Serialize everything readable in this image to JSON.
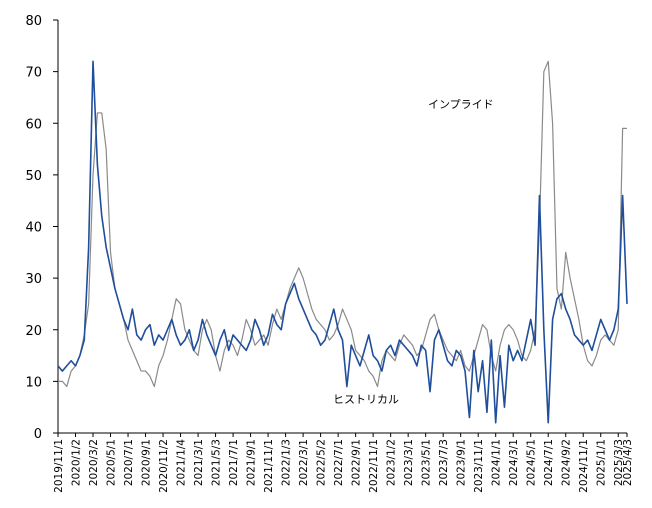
{
  "chart_data": {
    "type": "line",
    "annotations": [
      "インプライド",
      "ヒストリカル"
    ],
    "categories": [
      "2019/11/1",
      null,
      null,
      null,
      "2020/1/2",
      null,
      null,
      null,
      "2020/3/2",
      null,
      null,
      null,
      "2020/5/1",
      null,
      null,
      null,
      "2020/7/1",
      null,
      null,
      null,
      "2020/9/1",
      null,
      null,
      null,
      "2020/11/2",
      null,
      null,
      null,
      "2021/1/4",
      null,
      null,
      null,
      "2021/3/1",
      null,
      null,
      null,
      "2021/5/3",
      null,
      null,
      null,
      "2021/7/1",
      null,
      null,
      null,
      "2021/9/1",
      null,
      null,
      null,
      "2021/11/1",
      null,
      null,
      null,
      "2022/1/3",
      null,
      null,
      null,
      "2022/3/1",
      null,
      null,
      null,
      "2022/5/2",
      null,
      null,
      null,
      "2022/7/1",
      null,
      null,
      null,
      "2022/9/1",
      null,
      null,
      null,
      "2022/11/1",
      null,
      null,
      null,
      "2023/1/2",
      null,
      null,
      null,
      "2023/3/1",
      null,
      null,
      null,
      "2023/5/1",
      null,
      null,
      null,
      "2023/7/3",
      null,
      null,
      null,
      "2023/9/1",
      null,
      null,
      null,
      "2023/11/1",
      null,
      null,
      null,
      "2024/1/1",
      null,
      null,
      null,
      "2024/3/1",
      null,
      null,
      null,
      "2024/5/1",
      null,
      null,
      null,
      "2024/7/1",
      null,
      null,
      null,
      "2024/9/2",
      null,
      null,
      null,
      "2024/11/1",
      null,
      null,
      null,
      "2025/1/1",
      null,
      null,
      null,
      "2025/3/3",
      null,
      "2025/4/3"
    ],
    "series": [
      {
        "name": "インプライド",
        "color": "#8a8a8a",
        "values": [
          10,
          10,
          9,
          12,
          13,
          15,
          19,
          25,
          50,
          62,
          62,
          55,
          35,
          28,
          25,
          22,
          18,
          16,
          14,
          12,
          12,
          11,
          9,
          13,
          15,
          18,
          22,
          26,
          25,
          20,
          18,
          16,
          15,
          20,
          22,
          20,
          15,
          12,
          16,
          18,
          17,
          15,
          18,
          22,
          20,
          17,
          18,
          19,
          17,
          21,
          24,
          22,
          25,
          28,
          30,
          32,
          30,
          27,
          24,
          22,
          21,
          20,
          18,
          19,
          21,
          24,
          22,
          20,
          16,
          15,
          14,
          12,
          11,
          9,
          14,
          16,
          15,
          14,
          17,
          19,
          18,
          17,
          15,
          16,
          19,
          22,
          23,
          20,
          18,
          16,
          15,
          14,
          16,
          13,
          12,
          15,
          18,
          21,
          20,
          15,
          12,
          17,
          20,
          21,
          20,
          18,
          15,
          14,
          16,
          20,
          40,
          70,
          72,
          60,
          28,
          24,
          35,
          30,
          26,
          22,
          17,
          14,
          13,
          15,
          18,
          19,
          18,
          17,
          20,
          59,
          59
        ]
      },
      {
        "name": "ヒストリカル",
        "color": "#1f4e9c",
        "values": [
          13,
          12,
          13,
          14,
          13,
          15,
          18,
          36,
          72,
          52,
          42,
          36,
          32,
          28,
          25,
          22,
          20,
          24,
          19,
          18,
          20,
          21,
          17,
          19,
          18,
          20,
          22,
          19,
          17,
          18,
          20,
          16,
          18,
          22,
          19,
          17,
          15,
          18,
          20,
          16,
          19,
          18,
          17,
          16,
          18,
          22,
          20,
          17,
          19,
          23,
          21,
          20,
          25,
          27,
          29,
          26,
          24,
          22,
          20,
          19,
          17,
          18,
          21,
          24,
          20,
          18,
          9,
          17,
          15,
          13,
          16,
          19,
          15,
          14,
          12,
          16,
          17,
          15,
          18,
          17,
          16,
          15,
          13,
          17,
          16,
          8,
          18,
          20,
          17,
          14,
          13,
          16,
          15,
          12,
          3,
          16,
          8,
          14,
          4,
          18,
          2,
          15,
          5,
          17,
          14,
          16,
          14,
          18,
          22,
          17,
          46,
          20,
          2,
          22,
          26,
          27,
          24,
          22,
          19,
          18,
          17,
          18,
          16,
          19,
          22,
          20,
          18,
          20,
          24,
          46,
          25
        ]
      }
    ],
    "ylim": [
      0,
      80
    ],
    "yticks": [
      0,
      10,
      20,
      30,
      40,
      50,
      60,
      70,
      80
    ]
  }
}
